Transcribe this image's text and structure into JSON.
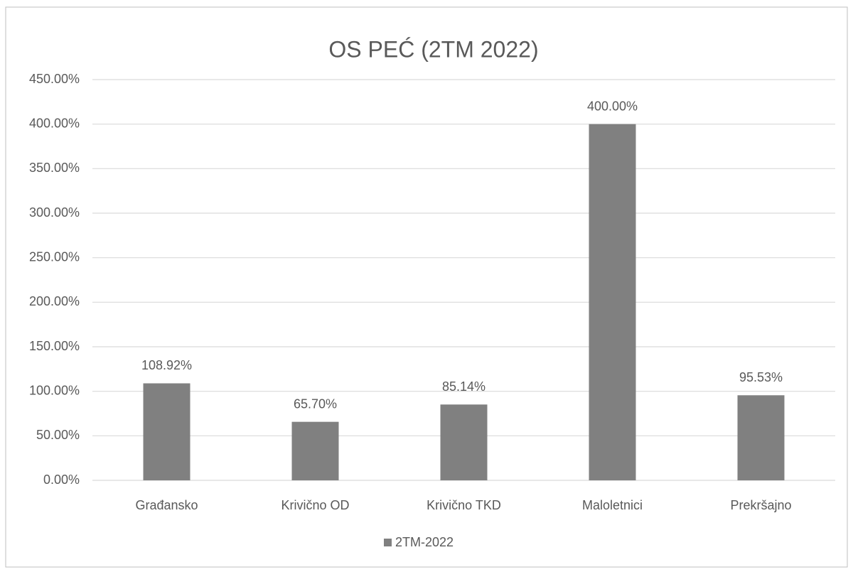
{
  "chart_data": {
    "type": "bar",
    "title": "OS PEĆ (2TM 2022)",
    "categories": [
      "Građansko",
      "Krivično OD",
      "Krivično TKD",
      "Maloletnici",
      "Prekršajno"
    ],
    "series": [
      {
        "name": "2TM-2022",
        "color": "#808080",
        "values": [
          108.92,
          65.7,
          85.14,
          400,
          95.53
        ],
        "value_labels": [
          "108.92%",
          "65.70%",
          "85.14%",
          "400.00%",
          "95.53%"
        ]
      }
    ],
    "ylim": [
      0,
      450
    ],
    "yticks": [
      {
        "value": 0,
        "label": "0.00%"
      },
      {
        "value": 50,
        "label": "50.00%"
      },
      {
        "value": 100,
        "label": "100.00%"
      },
      {
        "value": 150,
        "label": "150.00%"
      },
      {
        "value": 200,
        "label": "200.00%"
      },
      {
        "value": 250,
        "label": "250.00%"
      },
      {
        "value": 300,
        "label": "300.00%"
      },
      {
        "value": 350,
        "label": "350.00%"
      },
      {
        "value": 400,
        "label": "400.00%"
      },
      {
        "value": 450,
        "label": "450.00%"
      }
    ],
    "grid": true,
    "legend": "bottom"
  }
}
